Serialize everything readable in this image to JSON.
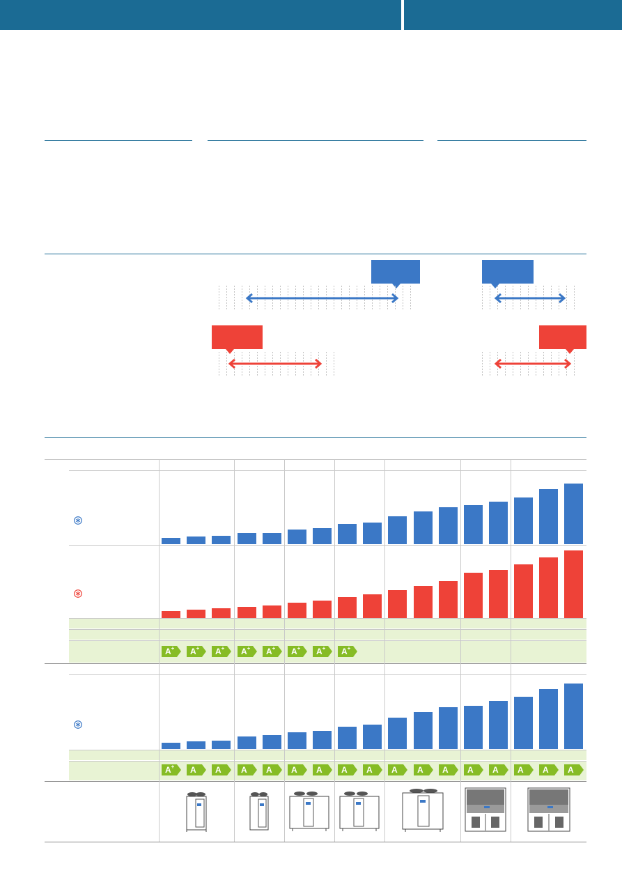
{
  "colors": {
    "brand": "#1b6b94",
    "cooling": "#3b78c6",
    "heating": "#ee4238",
    "efficiency": "#86bc25",
    "green_row": "#e8f3d4"
  },
  "icons": {
    "cooling": "snowflake-icon",
    "heating": "heating-icon"
  },
  "energy_classes": {
    "row1": [
      "A+",
      "A+",
      "A+",
      "A+",
      "A+",
      "A+",
      "A+",
      "A+"
    ],
    "row2": [
      "A+",
      "A",
      "A",
      "A",
      "A",
      "A",
      "A",
      "A",
      "A",
      "A",
      "A",
      "A",
      "A",
      "A",
      "A",
      "A",
      "A"
    ]
  },
  "chart_data": [
    {
      "type": "bar",
      "name": "reversible-cooling",
      "values": [
        1,
        1.3,
        1.4,
        1.8,
        1.8,
        2.4,
        2.7,
        3.3,
        3.6,
        4.6,
        5.4,
        6.1,
        6.4,
        7.0,
        7.7,
        9.1,
        10.0
      ]
    },
    {
      "type": "bar",
      "name": "reversible-heating",
      "values": [
        1,
        1.2,
        1.4,
        1.7,
        1.9,
        2.3,
        2.6,
        3.1,
        3.5,
        4.1,
        4.7,
        5.5,
        6.7,
        7.1,
        7.9,
        9.0,
        10.0
      ]
    },
    {
      "type": "bar",
      "name": "cooling-only",
      "values": [
        1,
        1.2,
        1.3,
        1.9,
        2.1,
        2.5,
        2.8,
        3.4,
        3.7,
        4.8,
        5.6,
        6.4,
        6.6,
        7.3,
        8.0,
        9.2,
        10.0
      ]
    }
  ]
}
